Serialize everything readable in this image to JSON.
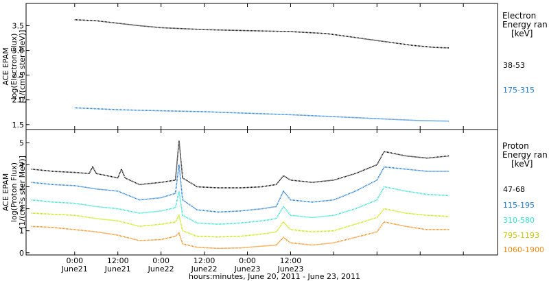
{
  "chart_data": [
    {
      "type": "line",
      "panel": "electron",
      "ylabel_lines": [
        "ACE EPAM",
        "log(Electron Flux)",
        "[1/(cm²s ster MeV)]"
      ],
      "ylim": [
        1.4,
        3.95
      ],
      "yticks": [
        1.5,
        2.0,
        2.5,
        3.0,
        3.5
      ],
      "ytick_labels": [
        "1.5",
        "2.0",
        "2.5",
        "3.0",
        "3.5"
      ],
      "legend_title": [
        "Electron",
        "Energy ran",
        "[keV]"
      ],
      "series": [
        {
          "name": "38-53",
          "color": "#000000",
          "points": [
            [
              0,
              3.62
            ],
            [
              6,
              3.6
            ],
            [
              12,
              3.55
            ],
            [
              18,
              3.5
            ],
            [
              24,
              3.46
            ],
            [
              36,
              3.42
            ],
            [
              48,
              3.4
            ],
            [
              60,
              3.38
            ],
            [
              70,
              3.34
            ],
            [
              76,
              3.28
            ],
            [
              82,
              3.22
            ],
            [
              88,
              3.16
            ],
            [
              94,
              3.1
            ],
            [
              100,
              3.06
            ],
            [
              104,
              3.05
            ]
          ]
        },
        {
          "name": "175-315",
          "color": "#1a78d2",
          "points": [
            [
              0,
              1.84
            ],
            [
              6,
              1.82
            ],
            [
              12,
              1.8
            ],
            [
              24,
              1.78
            ],
            [
              36,
              1.76
            ],
            [
              48,
              1.73
            ],
            [
              60,
              1.7
            ],
            [
              72,
              1.66
            ],
            [
              84,
              1.62
            ],
            [
              96,
              1.58
            ],
            [
              104,
              1.57
            ]
          ]
        }
      ]
    },
    {
      "type": "line",
      "panel": "proton",
      "ylabel_lines": [
        "ACE EPAM",
        "log(Proton Flux)",
        "[1/(cm²s ster MeV)]"
      ],
      "ylim": [
        -0.1,
        5.6
      ],
      "yticks": [
        0,
        1,
        2,
        3,
        4,
        5
      ],
      "ytick_labels": [
        "0",
        "1",
        "2",
        "3",
        "4",
        "5"
      ],
      "xlabel": "hours:minutes, June 20, 2011 - June 23, 2011",
      "xlim": [
        -13.5,
        117.5
      ],
      "xticks": [
        0,
        12,
        24,
        36,
        48,
        60,
        72,
        84,
        96,
        108
      ],
      "xtick_labels": [
        "0:00",
        "12:00",
        "0:00",
        "12:00",
        "0:00",
        "12:00"
      ],
      "xtick_label_hours": [
        0,
        12,
        24,
        36,
        48,
        60
      ],
      "xtick_sublabels": [
        "June21",
        "June21",
        "June22",
        "June22",
        "June23",
        "June23"
      ],
      "legend_title": [
        "Proton",
        "Energy ran",
        "[keV]"
      ],
      "series": [
        {
          "name": "47-68",
          "color": "#000000",
          "points": [
            [
              -12,
              3.8
            ],
            [
              -6,
              3.7
            ],
            [
              0,
              3.65
            ],
            [
              4,
              3.6
            ],
            [
              5,
              3.9
            ],
            [
              6,
              3.6
            ],
            [
              12,
              3.4
            ],
            [
              13,
              3.8
            ],
            [
              14,
              3.4
            ],
            [
              18,
              3.1
            ],
            [
              24,
              3.2
            ],
            [
              28,
              3.3
            ],
            [
              29,
              5.1
            ],
            [
              30,
              3.4
            ],
            [
              34,
              3.0
            ],
            [
              40,
              2.95
            ],
            [
              46,
              2.95
            ],
            [
              52,
              3.0
            ],
            [
              56,
              3.1
            ],
            [
              58,
              3.5
            ],
            [
              60,
              3.3
            ],
            [
              66,
              3.2
            ],
            [
              72,
              3.3
            ],
            [
              78,
              3.6
            ],
            [
              84,
              4.0
            ],
            [
              86,
              4.6
            ],
            [
              92,
              4.4
            ],
            [
              98,
              4.3
            ],
            [
              104,
              4.4
            ]
          ]
        },
        {
          "name": "115-195",
          "color": "#1a78d2",
          "points": [
            [
              -12,
              3.2
            ],
            [
              -6,
              3.1
            ],
            [
              0,
              3.05
            ],
            [
              6,
              2.9
            ],
            [
              12,
              2.8
            ],
            [
              18,
              2.4
            ],
            [
              24,
              2.5
            ],
            [
              28,
              2.7
            ],
            [
              29,
              4.0
            ],
            [
              30,
              2.4
            ],
            [
              34,
              1.95
            ],
            [
              40,
              1.85
            ],
            [
              46,
              1.9
            ],
            [
              52,
              2.0
            ],
            [
              56,
              2.1
            ],
            [
              58,
              2.8
            ],
            [
              60,
              2.4
            ],
            [
              66,
              2.3
            ],
            [
              72,
              2.4
            ],
            [
              78,
              2.8
            ],
            [
              84,
              3.3
            ],
            [
              86,
              3.9
            ],
            [
              92,
              3.8
            ],
            [
              98,
              3.7
            ],
            [
              104,
              3.7
            ]
          ]
        },
        {
          "name": "310-580",
          "color": "#2ee0d2",
          "points": [
            [
              -12,
              2.4
            ],
            [
              -6,
              2.3
            ],
            [
              0,
              2.25
            ],
            [
              6,
              2.1
            ],
            [
              12,
              2.0
            ],
            [
              18,
              1.8
            ],
            [
              24,
              1.9
            ],
            [
              28,
              2.05
            ],
            [
              29,
              2.8
            ],
            [
              30,
              1.7
            ],
            [
              34,
              1.35
            ],
            [
              40,
              1.3
            ],
            [
              46,
              1.35
            ],
            [
              52,
              1.45
            ],
            [
              56,
              1.55
            ],
            [
              58,
              2.1
            ],
            [
              60,
              1.7
            ],
            [
              66,
              1.6
            ],
            [
              72,
              1.7
            ],
            [
              78,
              2.0
            ],
            [
              84,
              2.4
            ],
            [
              86,
              3.0
            ],
            [
              92,
              2.8
            ],
            [
              98,
              2.65
            ],
            [
              104,
              2.6
            ]
          ]
        },
        {
          "name": "795-1193",
          "color": "#c6e800",
          "points": [
            [
              -12,
              1.8
            ],
            [
              -6,
              1.75
            ],
            [
              0,
              1.7
            ],
            [
              6,
              1.55
            ],
            [
              12,
              1.45
            ],
            [
              18,
              1.2
            ],
            [
              24,
              1.3
            ],
            [
              28,
              1.4
            ],
            [
              29,
              1.7
            ],
            [
              30,
              1.0
            ],
            [
              34,
              0.75
            ],
            [
              40,
              0.72
            ],
            [
              46,
              0.75
            ],
            [
              52,
              0.85
            ],
            [
              56,
              0.95
            ],
            [
              58,
              1.4
            ],
            [
              60,
              1.05
            ],
            [
              66,
              0.95
            ],
            [
              72,
              1.0
            ],
            [
              78,
              1.3
            ],
            [
              84,
              1.6
            ],
            [
              86,
              2.0
            ],
            [
              92,
              1.8
            ],
            [
              98,
              1.7
            ],
            [
              104,
              1.65
            ]
          ]
        },
        {
          "name": "1060-1900",
          "color": "#f08a10",
          "points": [
            [
              -12,
              1.2
            ],
            [
              -6,
              1.15
            ],
            [
              0,
              1.05
            ],
            [
              6,
              0.95
            ],
            [
              12,
              0.8
            ],
            [
              18,
              0.55
            ],
            [
              24,
              0.6
            ],
            [
              28,
              0.75
            ],
            [
              29,
              0.9
            ],
            [
              30,
              0.4
            ],
            [
              34,
              0.25
            ],
            [
              40,
              0.2
            ],
            [
              46,
              0.22
            ],
            [
              52,
              0.3
            ],
            [
              56,
              0.35
            ],
            [
              58,
              0.7
            ],
            [
              60,
              0.45
            ],
            [
              66,
              0.35
            ],
            [
              72,
              0.45
            ],
            [
              78,
              0.7
            ],
            [
              84,
              0.95
            ],
            [
              86,
              1.4
            ],
            [
              92,
              1.2
            ],
            [
              98,
              1.05
            ],
            [
              104,
              1.05
            ]
          ]
        }
      ]
    }
  ]
}
